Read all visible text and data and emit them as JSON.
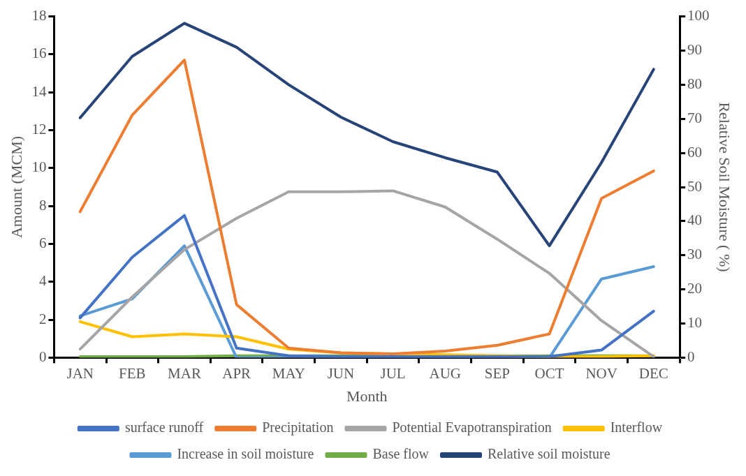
{
  "chart_data": {
    "type": "line",
    "xlabel": "Month",
    "ylabel": "Amount (MCM)",
    "y2label": "Relative Soil Moisture ( %)",
    "categories": [
      "JAN",
      "FEB",
      "MAR",
      "APR",
      "MAY",
      "JUN",
      "JUL",
      "AUG",
      "SEP",
      "OCT",
      "NOV",
      "DEC"
    ],
    "series": [
      {
        "name": "surface runoff",
        "color": "#4472c4",
        "values": [
          2.1,
          5.3,
          7.5,
          0.5,
          0.1,
          0.05,
          0.05,
          0.05,
          0.05,
          0.05,
          0.4,
          2.45
        ]
      },
      {
        "name": "Precipitation",
        "color": "#ed7d31",
        "values": [
          7.7,
          12.8,
          15.7,
          2.8,
          0.5,
          0.25,
          0.2,
          0.35,
          0.65,
          1.25,
          8.4,
          9.85
        ]
      },
      {
        "name": "Potential Evapotranspiration",
        "color": "#a5a5a5",
        "values": [
          0.45,
          3.2,
          5.7,
          7.35,
          8.75,
          8.75,
          8.8,
          7.95,
          6.25,
          4.45,
          1.95,
          0.05
        ]
      },
      {
        "name": "Interflow",
        "color": "#ffc000",
        "values": [
          1.9,
          1.1,
          1.25,
          1.1,
          0.45,
          0.25,
          0.2,
          0.15,
          0.1,
          0.05,
          0.05,
          0.1
        ]
      },
      {
        "name": "Increase in soil moisture",
        "color": "#5b9bd5",
        "values": [
          2.2,
          3.1,
          5.9,
          0,
          0,
          0,
          0,
          0,
          0,
          0,
          4.15,
          4.8
        ]
      },
      {
        "name": "Base flow",
        "color": "#70ad47",
        "values": [
          0.05,
          0.05,
          0.05,
          0.1,
          0.1,
          0.1,
          0.1,
          0.1,
          0.1,
          0.1,
          0.1,
          0.1
        ]
      },
      {
        "name": "Relative soil moisture",
        "color": "#264478",
        "axis": "y2",
        "values": [
          70.3,
          88.3,
          98,
          91,
          80,
          70.5,
          63.3,
          58.6,
          54.4,
          32.8,
          57.2,
          84.5
        ]
      }
    ],
    "ylim": [
      0,
      18
    ],
    "yticks": [
      0,
      2,
      4,
      6,
      8,
      10,
      12,
      14,
      16,
      18
    ],
    "y2lim": [
      0,
      100
    ],
    "y2ticks": [
      0,
      10,
      20,
      30,
      40,
      50,
      60,
      70,
      80,
      90,
      100
    ],
    "grid": false,
    "legend": "bottom",
    "marker": "none",
    "line_style": "solid"
  }
}
